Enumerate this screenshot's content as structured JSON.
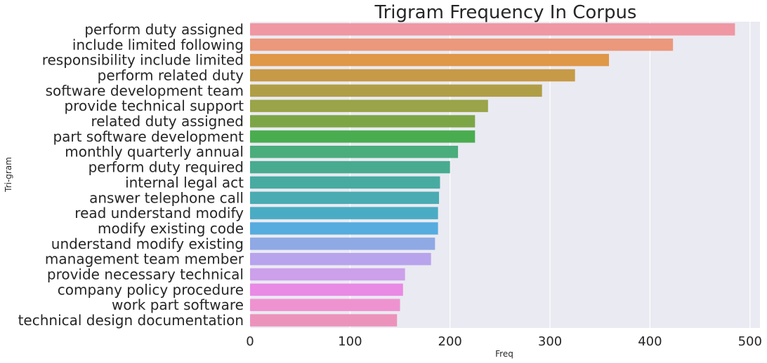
{
  "chart_data": {
    "type": "bar",
    "orientation": "horizontal",
    "title": "Trigram Frequency In Corpus",
    "xlabel": "Freq",
    "ylabel": "Tri-gram",
    "xlim": [
      0,
      510
    ],
    "xticks": [
      0,
      100,
      200,
      300,
      400,
      500
    ],
    "grid": true,
    "legend": "none",
    "plot_background": "#eaeaf2",
    "grid_color": "#ffffff",
    "categories": [
      "perform duty assigned",
      "include limited following",
      "responsibility include limited",
      "perform related duty",
      "software development team",
      "provide technical support",
      "related duty assigned",
      "part software development",
      "monthly quarterly annual",
      "perform duty required",
      "internal legal act",
      "answer telephone call",
      "read understand modify",
      "modify existing code",
      "understand modify existing",
      "management team member",
      "provide necessary technical",
      "company policy procedure",
      "work part software",
      "technical design documentation"
    ],
    "values": [
      485,
      423,
      359,
      325,
      292,
      238,
      225,
      225,
      208,
      200,
      190,
      189,
      188,
      188,
      185,
      181,
      155,
      153,
      150,
      147
    ],
    "colors": [
      "#ef97a2",
      "#eb987c",
      "#df9748",
      "#c69a47",
      "#b09e47",
      "#9aa448",
      "#7ca646",
      "#49ad4f",
      "#4aad7b",
      "#48ab90",
      "#48aba2",
      "#4aacb2",
      "#4aacc4",
      "#56acdf",
      "#8fa9e5",
      "#b7a4ec",
      "#cca0ea",
      "#e98ae5",
      "#ef93d0",
      "#ec93bc"
    ]
  }
}
